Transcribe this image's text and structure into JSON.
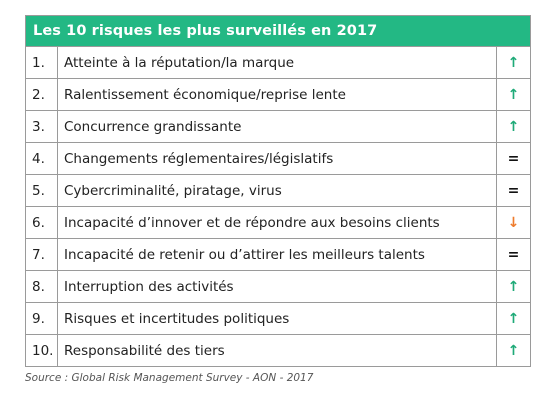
{
  "table": {
    "title": "Les 10 risques les plus surveillés en 2017",
    "rows": [
      {
        "num": "1.",
        "label": "Atteinte à la réputation/la marque",
        "trend": "up",
        "trend_symbol": "↑"
      },
      {
        "num": "2.",
        "label": "Ralentissement économique/reprise lente",
        "trend": "up",
        "trend_symbol": "↑"
      },
      {
        "num": "3.",
        "label": "Concurrence grandissante",
        "trend": "up",
        "trend_symbol": "↑"
      },
      {
        "num": "4.",
        "label": "Changements réglementaires/législatifs",
        "trend": "equal",
        "trend_symbol": "="
      },
      {
        "num": "5.",
        "label": "Cybercriminalité, piratage, virus",
        "trend": "equal",
        "trend_symbol": "="
      },
      {
        "num": "6.",
        "label": "Incapacité d’innover et de répondre aux besoins clients",
        "trend": "down",
        "trend_symbol": "↓"
      },
      {
        "num": "7.",
        "label": "Incapacité de retenir ou d’attirer les meilleurs talents",
        "trend": "equal",
        "trend_symbol": "="
      },
      {
        "num": "8.",
        "label": "Interruption des activités",
        "trend": "up",
        "trend_symbol": "↑"
      },
      {
        "num": "9.",
        "label": "Risques et incertitudes politiques",
        "trend": "up",
        "trend_symbol": "↑"
      },
      {
        "num": "10.",
        "label": "Responsabilité des tiers",
        "trend": "up",
        "trend_symbol": "↑"
      }
    ]
  },
  "source": "Source : Global Risk Management Survey - AON - 2017",
  "colors": {
    "header_bg": "#23b884",
    "up": "#1faa78",
    "down": "#ee7b2c",
    "equal": "#111111"
  }
}
